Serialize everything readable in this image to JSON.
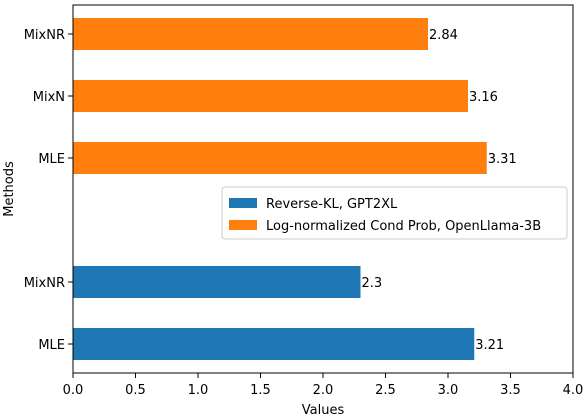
{
  "chart_data": {
    "type": "bar",
    "orientation": "horizontal",
    "title": "",
    "xlabel": "Values",
    "ylabel": "Methods",
    "xlim": [
      0,
      4.0
    ],
    "xticks": [
      "0.0",
      "0.5",
      "1.0",
      "1.5",
      "2.0",
      "2.5",
      "3.0",
      "3.5",
      "4.0"
    ],
    "grid": false,
    "legend_position": "center-right",
    "series": [
      {
        "name": "Reverse-KL, GPT2XL",
        "color": "#1f77b4",
        "bars": [
          {
            "category": "MLE",
            "value": 3.21,
            "label": "3.21"
          },
          {
            "category": "MixNR",
            "value": 2.3,
            "label": "2.3"
          }
        ]
      },
      {
        "name": "Log-normalized Cond Prob, OpenLlama-3B",
        "color": "#ff7f0e",
        "bars": [
          {
            "category": "MLE",
            "value": 3.31,
            "label": "3.31"
          },
          {
            "category": "MixN",
            "value": 3.16,
            "label": "3.16"
          },
          {
            "category": "MixNR",
            "value": 2.84,
            "label": "2.84"
          }
        ]
      }
    ]
  }
}
